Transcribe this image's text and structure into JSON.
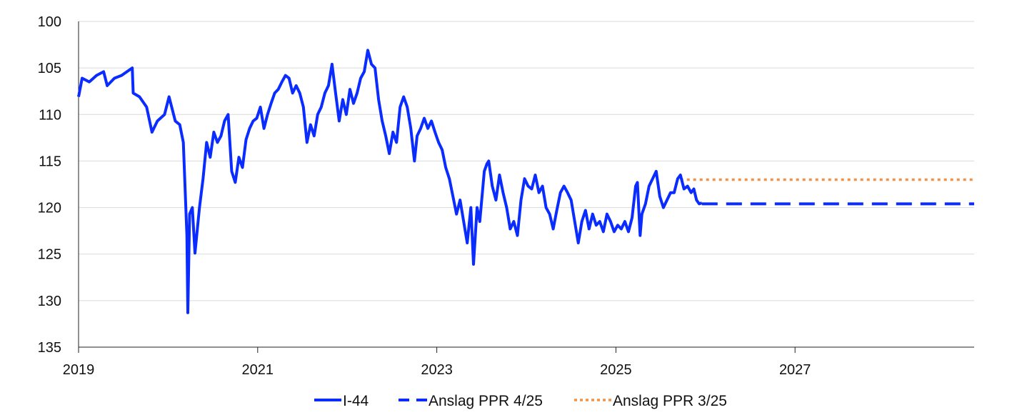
{
  "chart_data": {
    "type": "line",
    "title": "",
    "xlabel": "",
    "ylabel": "",
    "xlim": [
      2019,
      2029
    ],
    "ylim": [
      135,
      100
    ],
    "y_inverted": true,
    "grid": "horizontal",
    "legend_placement": "bottom-center",
    "x_ticks": [
      "2019",
      "2021",
      "2023",
      "2025",
      "2027"
    ],
    "x_tick_values": [
      2019,
      2021,
      2023,
      2025,
      2027
    ],
    "y_ticks": [
      "100",
      "105",
      "110",
      "115",
      "120",
      "125",
      "130",
      "135"
    ],
    "y_tick_values": [
      100,
      105,
      110,
      115,
      120,
      125,
      130,
      135
    ],
    "series": [
      {
        "name": "I-44",
        "color": "#0a2cff",
        "style": "solid",
        "points": [
          [
            2019.0,
            108.1
          ],
          [
            2019.04,
            106.1
          ],
          [
            2019.12,
            106.5
          ],
          [
            2019.2,
            105.8
          ],
          [
            2019.28,
            105.4
          ],
          [
            2019.32,
            106.9
          ],
          [
            2019.4,
            106.1
          ],
          [
            2019.48,
            105.8
          ],
          [
            2019.6,
            105.0
          ],
          [
            2019.61,
            107.7
          ],
          [
            2019.68,
            108.1
          ],
          [
            2019.76,
            109.2
          ],
          [
            2019.82,
            111.9
          ],
          [
            2019.88,
            110.7
          ],
          [
            2019.96,
            110.0
          ],
          [
            2020.01,
            108.1
          ],
          [
            2020.08,
            110.7
          ],
          [
            2020.13,
            111.1
          ],
          [
            2020.17,
            113.0
          ],
          [
            2020.21,
            123.0
          ],
          [
            2020.22,
            131.3
          ],
          [
            2020.24,
            120.7
          ],
          [
            2020.27,
            120.0
          ],
          [
            2020.3,
            124.9
          ],
          [
            2020.35,
            120.0
          ],
          [
            2020.39,
            116.9
          ],
          [
            2020.43,
            113.0
          ],
          [
            2020.47,
            114.6
          ],
          [
            2020.51,
            111.9
          ],
          [
            2020.55,
            113.0
          ],
          [
            2020.59,
            112.3
          ],
          [
            2020.63,
            110.7
          ],
          [
            2020.67,
            110.0
          ],
          [
            2020.71,
            116.1
          ],
          [
            2020.75,
            117.3
          ],
          [
            2020.79,
            114.6
          ],
          [
            2020.83,
            115.7
          ],
          [
            2020.87,
            112.7
          ],
          [
            2020.91,
            111.5
          ],
          [
            2020.95,
            110.7
          ],
          [
            2020.99,
            110.4
          ],
          [
            2021.03,
            109.2
          ],
          [
            2021.07,
            111.5
          ],
          [
            2021.11,
            110.0
          ],
          [
            2021.15,
            108.8
          ],
          [
            2021.19,
            107.7
          ],
          [
            2021.23,
            107.3
          ],
          [
            2021.27,
            106.5
          ],
          [
            2021.31,
            105.8
          ],
          [
            2021.35,
            106.1
          ],
          [
            2021.39,
            107.7
          ],
          [
            2021.43,
            106.9
          ],
          [
            2021.47,
            107.7
          ],
          [
            2021.51,
            109.2
          ],
          [
            2021.55,
            113.0
          ],
          [
            2021.59,
            111.1
          ],
          [
            2021.63,
            112.3
          ],
          [
            2021.67,
            110.0
          ],
          [
            2021.71,
            109.2
          ],
          [
            2021.75,
            107.7
          ],
          [
            2021.79,
            106.9
          ],
          [
            2021.83,
            104.6
          ],
          [
            2021.87,
            107.7
          ],
          [
            2021.91,
            110.7
          ],
          [
            2021.95,
            108.4
          ],
          [
            2021.99,
            110.0
          ],
          [
            2022.03,
            107.3
          ],
          [
            2022.07,
            108.8
          ],
          [
            2022.11,
            107.7
          ],
          [
            2022.15,
            106.1
          ],
          [
            2022.19,
            105.4
          ],
          [
            2022.23,
            103.1
          ],
          [
            2022.27,
            104.6
          ],
          [
            2022.31,
            105.0
          ],
          [
            2022.35,
            108.4
          ],
          [
            2022.39,
            110.7
          ],
          [
            2022.43,
            112.3
          ],
          [
            2022.47,
            114.2
          ],
          [
            2022.51,
            111.9
          ],
          [
            2022.55,
            113.0
          ],
          [
            2022.59,
            109.2
          ],
          [
            2022.63,
            108.1
          ],
          [
            2022.67,
            109.2
          ],
          [
            2022.71,
            111.5
          ],
          [
            2022.75,
            115.0
          ],
          [
            2022.78,
            112.3
          ],
          [
            2022.82,
            111.5
          ],
          [
            2022.86,
            110.4
          ],
          [
            2022.9,
            111.5
          ],
          [
            2022.94,
            110.7
          ],
          [
            2022.98,
            111.9
          ],
          [
            2023.02,
            113.0
          ],
          [
            2023.06,
            113.8
          ],
          [
            2023.1,
            115.7
          ],
          [
            2023.14,
            116.9
          ],
          [
            2023.18,
            118.8
          ],
          [
            2023.22,
            120.7
          ],
          [
            2023.26,
            119.2
          ],
          [
            2023.3,
            121.5
          ],
          [
            2023.34,
            123.8
          ],
          [
            2023.38,
            120.0
          ],
          [
            2023.41,
            126.1
          ],
          [
            2023.45,
            120.0
          ],
          [
            2023.48,
            121.5
          ],
          [
            2023.53,
            116.1
          ],
          [
            2023.56,
            115.3
          ],
          [
            2023.58,
            115.0
          ],
          [
            2023.62,
            117.7
          ],
          [
            2023.66,
            119.2
          ],
          [
            2023.7,
            116.5
          ],
          [
            2023.74,
            118.4
          ],
          [
            2023.78,
            120.0
          ],
          [
            2023.82,
            122.3
          ],
          [
            2023.86,
            121.5
          ],
          [
            2023.9,
            123.0
          ],
          [
            2023.94,
            119.2
          ],
          [
            2023.98,
            116.9
          ],
          [
            2024.02,
            117.7
          ],
          [
            2024.06,
            118.0
          ],
          [
            2024.1,
            116.5
          ],
          [
            2024.14,
            118.4
          ],
          [
            2024.18,
            117.7
          ],
          [
            2024.22,
            120.0
          ],
          [
            2024.26,
            120.7
          ],
          [
            2024.3,
            122.3
          ],
          [
            2024.34,
            120.3
          ],
          [
            2024.38,
            118.4
          ],
          [
            2024.42,
            117.7
          ],
          [
            2024.46,
            118.4
          ],
          [
            2024.5,
            119.2
          ],
          [
            2024.54,
            121.5
          ],
          [
            2024.58,
            123.8
          ],
          [
            2024.62,
            121.5
          ],
          [
            2024.66,
            120.3
          ],
          [
            2024.7,
            122.3
          ],
          [
            2024.74,
            120.7
          ],
          [
            2024.78,
            121.9
          ],
          [
            2024.82,
            121.5
          ],
          [
            2024.86,
            122.6
          ],
          [
            2024.9,
            120.7
          ],
          [
            2024.94,
            121.5
          ],
          [
            2024.98,
            122.6
          ],
          [
            2025.02,
            121.9
          ],
          [
            2025.06,
            122.3
          ],
          [
            2025.1,
            121.5
          ],
          [
            2025.14,
            122.6
          ],
          [
            2025.18,
            121.1
          ],
          [
            2025.22,
            117.7
          ],
          [
            2025.24,
            117.3
          ],
          [
            2025.27,
            123.0
          ],
          [
            2025.29,
            120.7
          ],
          [
            2025.33,
            119.6
          ],
          [
            2025.37,
            117.7
          ],
          [
            2025.41,
            116.9
          ],
          [
            2025.45,
            116.1
          ],
          [
            2025.49,
            118.8
          ],
          [
            2025.53,
            120.0
          ],
          [
            2025.57,
            119.2
          ],
          [
            2025.61,
            118.4
          ],
          [
            2025.65,
            118.4
          ],
          [
            2025.69,
            116.9
          ],
          [
            2025.72,
            116.5
          ],
          [
            2025.76,
            118.0
          ],
          [
            2025.8,
            117.7
          ],
          [
            2025.84,
            118.4
          ],
          [
            2025.87,
            118.0
          ],
          [
            2025.9,
            119.2
          ],
          [
            2025.93,
            119.6
          ],
          [
            2025.96,
            119.5
          ]
        ]
      },
      {
        "name": "Anslag PPR 4/25",
        "color": "#0a2cff",
        "style": "dashed",
        "points": [
          [
            2025.96,
            119.6
          ],
          [
            2029.0,
            119.6
          ]
        ]
      },
      {
        "name": "Anslag PPR 3/25",
        "color": "#f0924a",
        "style": "dotted",
        "points": [
          [
            2025.72,
            117.0
          ],
          [
            2029.0,
            117.0
          ]
        ]
      }
    ]
  }
}
